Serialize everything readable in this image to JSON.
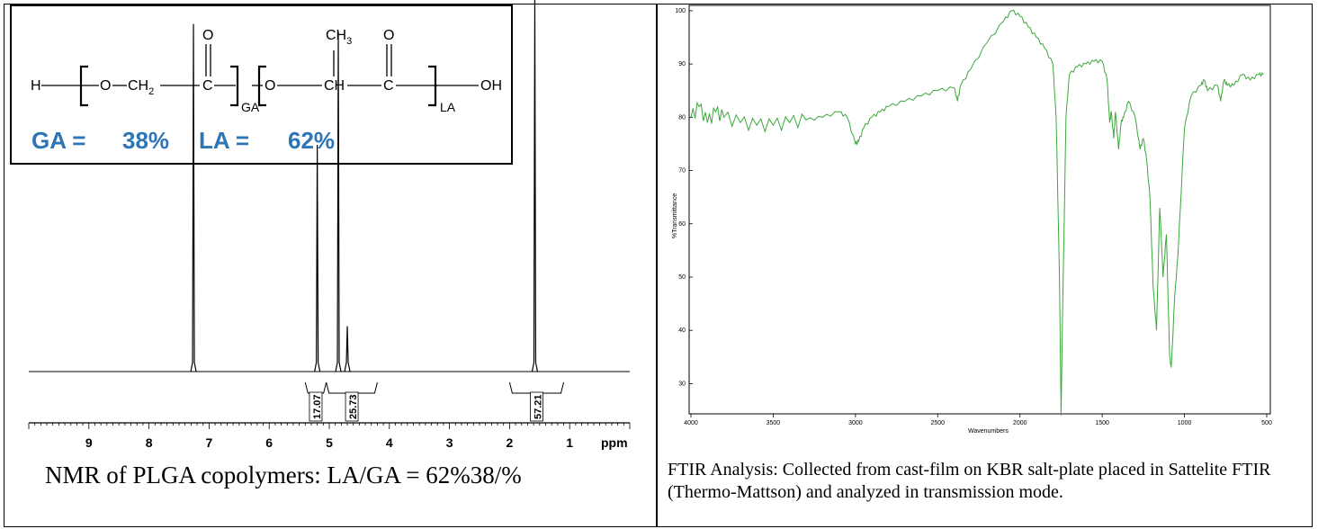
{
  "nmr": {
    "formula": {
      "h": "H",
      "o1": "O",
      "ch2": "CH",
      "ch2_sub": "2",
      "c1": "C",
      "o_dbl1": "O",
      "ga_sub": "GA",
      "o2": "O",
      "ch3": "CH",
      "ch3_sub": "3",
      "ch": "CH",
      "c2": "C",
      "o_dbl2": "O",
      "la_sub": "LA",
      "oh": "OH"
    },
    "composition": {
      "ga_label": "GA =",
      "ga_value": "38%",
      "la_label": "LA =",
      "la_value": "62%"
    },
    "caption": "NMR of PLGA copolymers: LA/GA = 62%38/%"
  },
  "ftir": {
    "caption": "FTIR Analysis: Collected from cast-film on KBR salt-plate placed in Sattelite FTIR (Thermo-Mattson) and analyzed in transmission mode.",
    "trace_color": "#3aa83a"
  },
  "chart_data": [
    {
      "type": "line",
      "xlabel": "ppm",
      "xlim": [
        10,
        0
      ],
      "x_ticks": [
        9,
        8,
        7,
        6,
        5,
        4,
        3,
        2,
        1
      ],
      "peaks": [
        {
          "ppm": 7.26,
          "relative_height": 0.92
        },
        {
          "ppm": 5.2,
          "relative_height": 0.6
        },
        {
          "ppm": 4.85,
          "relative_height": 0.9
        },
        {
          "ppm": 4.7,
          "relative_height": 0.12
        },
        {
          "ppm": 1.58,
          "relative_height": 1.4
        }
      ],
      "integrals": [
        {
          "label": "17.07",
          "from": 5.4,
          "to": 5.05
        },
        {
          "label": "25.73",
          "from": 5.05,
          "to": 4.2
        },
        {
          "label": "57.21",
          "from": 2.0,
          "to": 1.1
        }
      ]
    },
    {
      "type": "line",
      "xlabel": "Wavenumbers",
      "ylabel": "%Transmittance",
      "xlim": [
        4000,
        500
      ],
      "ylim": [
        20,
        100
      ],
      "x_ticks": [
        4000,
        3500,
        3000,
        2500,
        2000,
        1500,
        1000,
        500
      ],
      "y_ticks": [
        30,
        40,
        50,
        60,
        70,
        80,
        90,
        100
      ],
      "series": [
        {
          "x": [
            4000,
            3950,
            3900,
            3850,
            3800,
            3700,
            3600,
            3500,
            3400,
            3300,
            3200,
            3100,
            3050,
            3000,
            2980,
            2950,
            2900,
            2850,
            2800,
            2700,
            2600,
            2500,
            2400,
            2380,
            2360,
            2300,
            2200,
            2100,
            2050,
            2000,
            1950,
            1900,
            1850,
            1800,
            1780,
            1760,
            1750,
            1740,
            1720,
            1700,
            1650,
            1600,
            1550,
            1500,
            1470,
            1455,
            1445,
            1430,
            1420,
            1400,
            1385,
            1370,
            1340,
            1300,
            1270,
            1250,
            1230,
            1210,
            1190,
            1170,
            1150,
            1130,
            1110,
            1090,
            1080,
            1060,
            1040,
            1000,
            960,
            900,
            880,
            860,
            800,
            780,
            760,
            740,
            700,
            650,
            600,
            550,
            520
          ],
          "y": [
            80,
            82,
            79,
            81,
            80,
            79,
            78.5,
            78.5,
            79,
            79.5,
            80,
            81,
            80,
            75,
            75.5,
            78,
            80,
            81,
            82,
            83,
            84,
            85,
            85.5,
            83,
            86,
            89,
            94,
            98,
            100,
            99,
            97,
            95,
            93,
            90,
            80,
            50,
            24,
            45,
            80,
            88,
            89.5,
            90,
            90.5,
            90.5,
            87,
            79,
            81,
            76,
            81,
            74,
            79,
            80,
            83,
            80,
            74,
            76,
            72,
            65,
            48,
            40,
            63,
            50,
            58,
            35,
            33,
            46,
            54,
            78,
            84,
            86,
            87,
            85,
            86,
            83,
            87,
            86,
            86,
            88,
            87,
            88,
            88
          ]
        }
      ]
    }
  ]
}
